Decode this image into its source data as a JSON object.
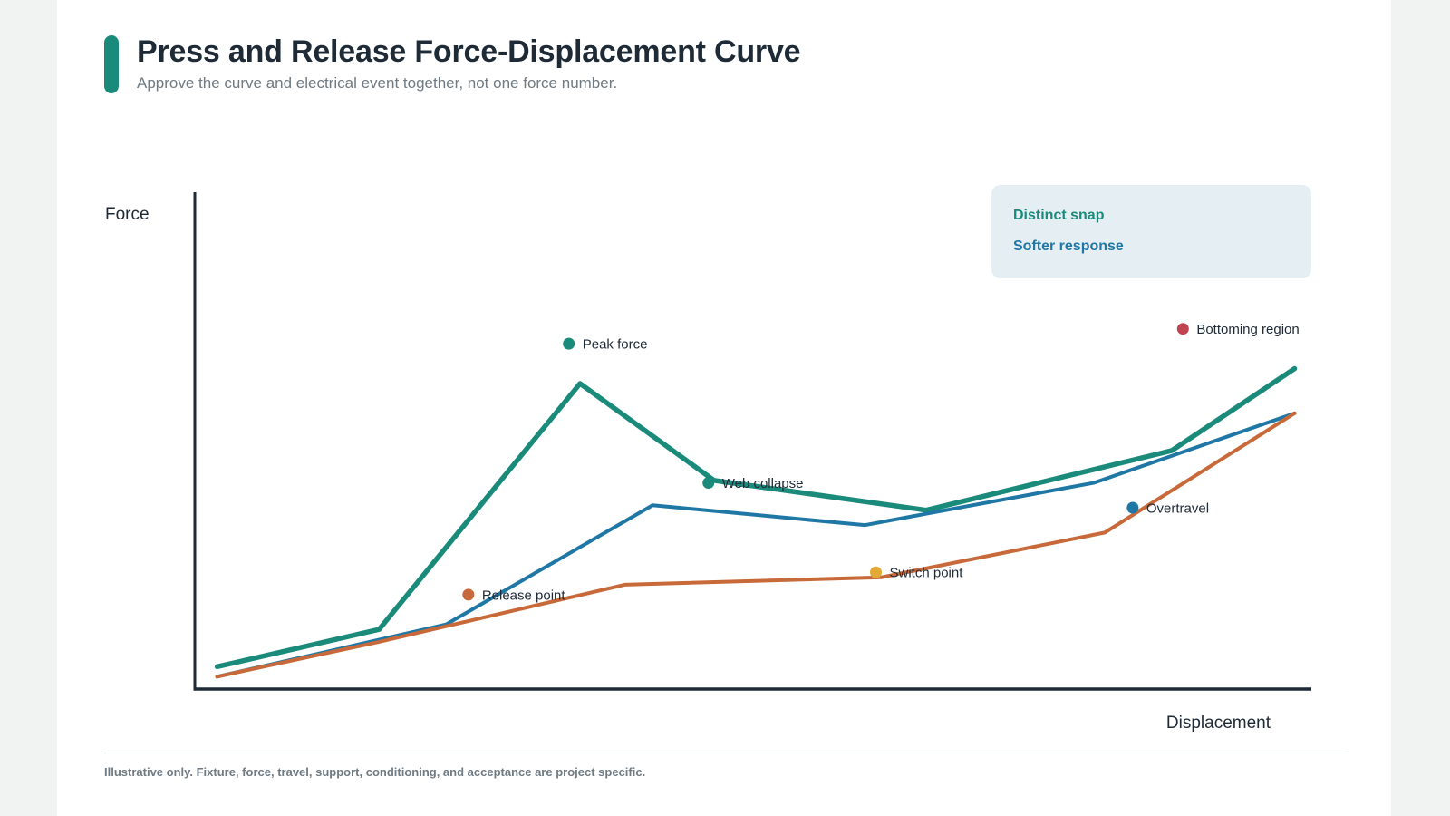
{
  "header": {
    "title": "Press and Release Force-Displacement Curve",
    "subtitle": "Approve the curve and electrical event together, not one force number."
  },
  "footnote": "Illustrative only. Fixture, force, travel, support, conditioning, and acceptance are project specific.",
  "chart_data": {
    "type": "line",
    "xlabel": "Displacement",
    "ylabel": "Force",
    "xlim": [
      0,
      100
    ],
    "ylim": [
      0,
      100
    ],
    "grid": false,
    "legend_position": "top-right",
    "series": [
      {
        "name": "Distinct snap",
        "color": "#1a8a7a",
        "x": [
          2,
          16.5,
          34.5,
          46.5,
          65.5,
          87.5,
          98.5
        ],
        "y": [
          4.5,
          12,
          61.5,
          42,
          36,
          48,
          64.5
        ]
      },
      {
        "name": "Softer response",
        "color": "#1f77a6",
        "x": [
          2,
          22.5,
          41,
          60,
          80.5,
          98.5
        ],
        "y": [
          2.5,
          13,
          37,
          33,
          41.5,
          55.5
        ]
      },
      {
        "color": "#c8693a",
        "x": [
          2,
          16.5,
          38.5,
          61.5,
          81.5,
          98.5
        ],
        "y": [
          2.5,
          9.5,
          21,
          22.5,
          31.5,
          55.5
        ]
      }
    ],
    "annotations": [
      {
        "label": "Peak force",
        "color": "#1a8a7a",
        "x": 33.5,
        "y": 69.5
      },
      {
        "label": "Web collapse",
        "color": "#1a8a7a",
        "x": 46,
        "y": 41.5
      },
      {
        "label": "Release point",
        "color": "#c8693a",
        "x": 24.5,
        "y": 19
      },
      {
        "label": "Switch point",
        "color": "#e3a935",
        "x": 61,
        "y": 23.5
      },
      {
        "label": "Overtravel",
        "color": "#1f77a6",
        "x": 84,
        "y": 36.5
      },
      {
        "label": "Bottoming region",
        "color": "#c0444f",
        "x": 88.5,
        "y": 72.5
      }
    ]
  }
}
